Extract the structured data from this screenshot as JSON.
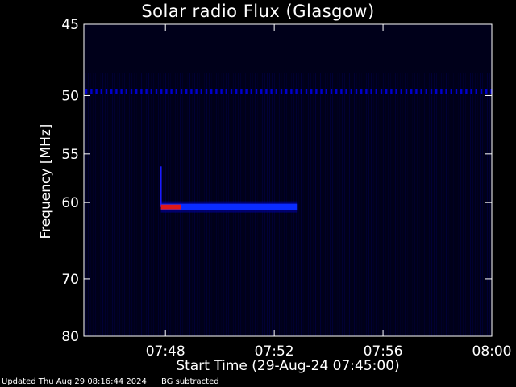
{
  "chart_data": {
    "type": "heatmap",
    "title": "Solar radio Flux (Glasgow)",
    "xlabel": "Start Time (29-Aug-24 07:45:00)",
    "ylabel": "Frequency [MHz]",
    "x_range": [
      "07:45:00",
      "08:00:00"
    ],
    "x_ticks": [
      "07:48",
      "07:52",
      "07:56",
      "08:00"
    ],
    "y_range": [
      45,
      80
    ],
    "y_ticks": [
      45,
      50,
      55,
      60,
      70,
      80
    ],
    "y_scale": "reciprocal",
    "colormap": [
      "#000000",
      "#00008b",
      "#0000ff",
      "#ff0000"
    ],
    "features": [
      {
        "kind": "narrowband_interference",
        "freq_mhz": 49.7,
        "t_start": "07:45:00",
        "t_end": "08:00:00",
        "level": "medium"
      },
      {
        "kind": "emission_band",
        "freq_mhz": 60.5,
        "t_start": "07:47:50",
        "t_end": "07:52:50",
        "level": "high"
      },
      {
        "kind": "emission_peak",
        "freq_mhz": 60.5,
        "t_start": "07:47:50",
        "t_end": "07:48:35",
        "level": "very_high"
      }
    ]
  },
  "footer": {
    "updated": "Updated Thu Aug 29 08:16:44 2024",
    "note": "BG subtracted"
  }
}
